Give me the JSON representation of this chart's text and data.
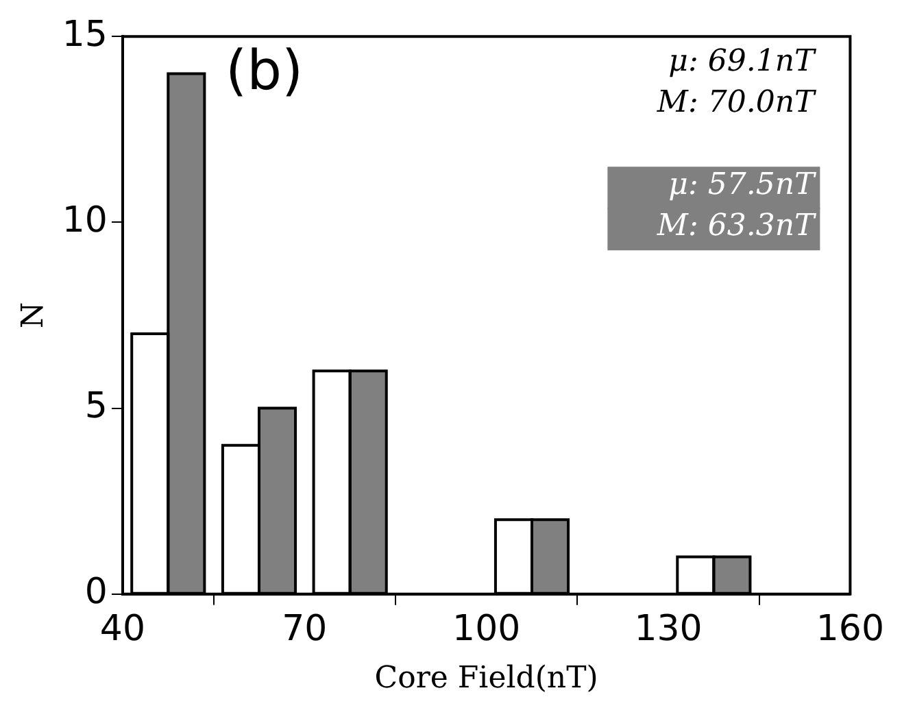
{
  "chart_data": {
    "type": "bar",
    "xlabel": "Core Field(nT)",
    "ylabel": "N",
    "x": [
      47.5,
      62.5,
      77.5,
      92.5,
      107.5,
      122.5,
      137.5,
      152.5
    ],
    "series": [
      {
        "color": "#ffffff",
        "values": [
          7,
          4,
          6,
          0,
          2,
          0,
          1,
          0
        ]
      },
      {
        "color": "#808080",
        "values": [
          14,
          5,
          6,
          0,
          2,
          0,
          1,
          0
        ]
      }
    ],
    "xlim": [
      40,
      160
    ],
    "xticks": [
      40,
      70,
      100,
      130,
      160
    ],
    "ylim": [
      0,
      15
    ],
    "yticks": [
      0,
      5,
      10,
      15
    ],
    "grid": false,
    "legend": false,
    "annotations": [
      "(b)",
      "μ: 69.1nT",
      "M: 70.0nT",
      "μ: 57.5nT",
      "M: 63.3nT"
    ]
  }
}
